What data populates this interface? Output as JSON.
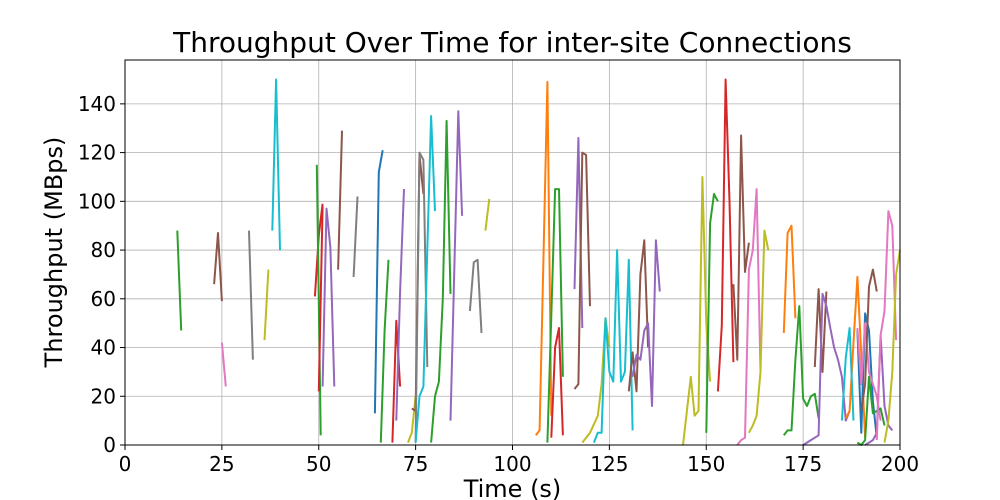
{
  "chart_data": {
    "type": "line",
    "title": "Throughput Over Time for inter-site Connections",
    "xlabel": "Time (s)",
    "ylabel": "Throughput (MBps)",
    "xlim": [
      0,
      200
    ],
    "ylim": [
      0,
      158
    ],
    "xticks": [
      0,
      25,
      50,
      75,
      100,
      125,
      150,
      175,
      200
    ],
    "yticks": [
      0,
      20,
      40,
      60,
      80,
      100,
      120,
      140
    ],
    "grid": true,
    "legend": "none",
    "palette": [
      "#1f77b4",
      "#ff7f0e",
      "#2ca02c",
      "#d62728",
      "#9467bd",
      "#8c564b",
      "#e377c2",
      "#7f7f7f",
      "#bcbd22",
      "#17becf"
    ],
    "series": [
      {
        "color": "#2ca02c",
        "x": [
          13.5,
          14.5
        ],
        "y": [
          88,
          47
        ]
      },
      {
        "color": "#8c564b",
        "x": [
          23,
          24,
          25
        ],
        "y": [
          66,
          87,
          59
        ]
      },
      {
        "color": "#e377c2",
        "x": [
          25,
          26
        ],
        "y": [
          42,
          24
        ]
      },
      {
        "color": "#7f7f7f",
        "x": [
          32,
          33
        ],
        "y": [
          88,
          35
        ]
      },
      {
        "color": "#bcbd22",
        "x": [
          36,
          37
        ],
        "y": [
          43,
          72
        ]
      },
      {
        "color": "#17becf",
        "x": [
          38,
          39,
          40
        ],
        "y": [
          88,
          150,
          80
        ]
      },
      {
        "color": "#d62728",
        "x": [
          49,
          50,
          51
        ],
        "y": [
          61,
          86,
          99
        ]
      },
      {
        "color": "#2ca02c",
        "x": [
          49.5,
          50.5
        ],
        "y": [
          115,
          4
        ]
      },
      {
        "color": "#d62728",
        "x": [
          50,
          51
        ],
        "y": [
          22,
          98
        ]
      },
      {
        "color": "#9467bd",
        "x": [
          51,
          52,
          53,
          54
        ],
        "y": [
          24,
          97,
          81,
          24
        ]
      },
      {
        "color": "#8c564b",
        "x": [
          55,
          56
        ],
        "y": [
          72,
          129
        ]
      },
      {
        "color": "#7f7f7f",
        "x": [
          59,
          60
        ],
        "y": [
          69,
          102
        ]
      },
      {
        "color": "#1f77b4",
        "x": [
          64.5,
          65.5,
          66.5
        ],
        "y": [
          13,
          112,
          121
        ]
      },
      {
        "color": "#2ca02c",
        "x": [
          66,
          67,
          68
        ],
        "y": [
          1,
          47,
          76
        ]
      },
      {
        "color": "#d62728",
        "x": [
          69,
          70,
          71
        ],
        "y": [
          1,
          51,
          24
        ]
      },
      {
        "color": "#9467bd",
        "x": [
          70,
          71,
          72
        ],
        "y": [
          10,
          63,
          105
        ]
      },
      {
        "color": "#bcbd22",
        "x": [
          73,
          74,
          75
        ],
        "y": [
          1,
          5,
          20
        ]
      },
      {
        "color": "#8c564b",
        "x": [
          74,
          75,
          76,
          77
        ],
        "y": [
          15,
          14,
          119,
          103
        ]
      },
      {
        "color": "#7f7f7f",
        "x": [
          75,
          76,
          77,
          78
        ],
        "y": [
          1,
          120,
          117,
          32
        ]
      },
      {
        "color": "#17becf",
        "x": [
          75,
          76,
          77,
          78,
          79,
          80
        ],
        "y": [
          1,
          20,
          24,
          80,
          135,
          96
        ]
      },
      {
        "color": "#2ca02c",
        "x": [
          79,
          80,
          81,
          82,
          83,
          84
        ],
        "y": [
          1,
          20,
          26,
          60,
          133,
          62
        ]
      },
      {
        "color": "#9467bd",
        "x": [
          84,
          86,
          87
        ],
        "y": [
          10,
          137,
          94
        ]
      },
      {
        "color": "#7f7f7f",
        "x": [
          89,
          90,
          91,
          92
        ],
        "y": [
          55,
          75,
          76,
          46
        ]
      },
      {
        "color": "#bcbd22",
        "x": [
          93,
          94
        ],
        "y": [
          88,
          101
        ]
      },
      {
        "color": "#ff7f0e",
        "x": [
          106,
          107,
          109,
          110
        ],
        "y": [
          4,
          6,
          149,
          12
        ]
      },
      {
        "color": "#2ca02c",
        "x": [
          109,
          110,
          111,
          112,
          113
        ],
        "y": [
          1,
          53,
          105,
          105,
          28
        ]
      },
      {
        "color": "#d62728",
        "x": [
          110,
          111,
          112,
          113
        ],
        "y": [
          3,
          40,
          48,
          4
        ]
      },
      {
        "color": "#9467bd",
        "x": [
          116,
          117,
          118
        ],
        "y": [
          64,
          126,
          48
        ]
      },
      {
        "color": "#8c564b",
        "x": [
          116,
          117,
          118,
          119,
          120
        ],
        "y": [
          23,
          25,
          120,
          119,
          57
        ]
      },
      {
        "color": "#bcbd22",
        "x": [
          118,
          120,
          122,
          123,
          124,
          125
        ],
        "y": [
          1,
          5,
          12,
          25,
          52,
          40
        ]
      },
      {
        "color": "#17becf",
        "x": [
          121,
          122,
          123,
          124,
          125,
          126,
          127,
          128,
          129,
          130,
          131
        ],
        "y": [
          1,
          5,
          5,
          52,
          30,
          26,
          80,
          26,
          30,
          76,
          6
        ]
      },
      {
        "color": "#8c564b",
        "x": [
          130,
          131,
          132,
          133,
          134,
          135
        ],
        "y": [
          22,
          38,
          22,
          70,
          84,
          40
        ]
      },
      {
        "color": "#9467bd",
        "x": [
          131,
          132,
          133,
          134,
          135,
          136,
          137,
          138
        ],
        "y": [
          28,
          37,
          35,
          47,
          50,
          16,
          84,
          63
        ]
      },
      {
        "color": "#bcbd22",
        "x": [
          144,
          146,
          147,
          148,
          149,
          150,
          151
        ],
        "y": [
          0,
          28,
          12,
          14,
          110,
          50,
          26
        ]
      },
      {
        "color": "#2ca02c",
        "x": [
          150,
          151,
          152,
          153
        ],
        "y": [
          5,
          91,
          103,
          100
        ]
      },
      {
        "color": "#d62728",
        "x": [
          153,
          154,
          155,
          156,
          157
        ],
        "y": [
          22,
          49,
          150,
          100,
          34
        ]
      },
      {
        "color": "#8c564b",
        "x": [
          157,
          158,
          159,
          160,
          161
        ],
        "y": [
          66,
          35,
          127,
          71,
          83
        ]
      },
      {
        "color": "#e377c2",
        "x": [
          158,
          159,
          160,
          161,
          162,
          163,
          164
        ],
        "y": [
          0,
          2,
          3,
          72,
          80,
          105,
          30
        ]
      },
      {
        "color": "#bcbd22",
        "x": [
          161,
          162,
          163,
          164,
          165,
          166
        ],
        "y": [
          5,
          8,
          12,
          30,
          88,
          80
        ]
      },
      {
        "color": "#ff7f0e",
        "x": [
          170,
          171,
          172,
          173
        ],
        "y": [
          46,
          87,
          90,
          52
        ]
      },
      {
        "color": "#2ca02c",
        "x": [
          170,
          171,
          172,
          173,
          174,
          175,
          176,
          177,
          178,
          179
        ],
        "y": [
          4,
          6,
          6,
          35,
          57,
          19,
          16,
          20,
          21,
          11
        ]
      },
      {
        "color": "#8c564b",
        "x": [
          178,
          179,
          180,
          181
        ],
        "y": [
          32,
          64,
          30,
          63
        ]
      },
      {
        "color": "#9467bd",
        "x": [
          175,
          176,
          177,
          178,
          179,
          180,
          181,
          182,
          183,
          184,
          185,
          186,
          187
        ],
        "y": [
          0,
          1,
          2,
          3,
          4,
          62,
          57,
          48,
          40,
          35,
          28,
          10,
          14
        ]
      },
      {
        "color": "#ff7f0e",
        "x": [
          186,
          187,
          188,
          189,
          190,
          191
        ],
        "y": [
          11,
          14,
          42,
          69,
          37,
          3
        ]
      },
      {
        "color": "#17becf",
        "x": [
          185,
          186,
          187,
          188
        ],
        "y": [
          10,
          36,
          48,
          10
        ]
      },
      {
        "color": "#1f77b4",
        "x": [
          189,
          190,
          191,
          192,
          193,
          194
        ],
        "y": [
          47,
          5,
          54,
          47,
          18,
          3
        ]
      },
      {
        "color": "#e377c2",
        "x": [
          189,
          190,
          191,
          192,
          193,
          194,
          195
        ],
        "y": [
          48,
          25,
          50,
          30,
          25,
          20,
          10
        ]
      },
      {
        "color": "#2ca02c",
        "x": [
          189,
          190,
          191,
          192,
          193,
          194,
          195,
          196
        ],
        "y": [
          1,
          0,
          2,
          28,
          13,
          14,
          15,
          8
        ]
      },
      {
        "color": "#8c564b",
        "x": [
          190,
          191,
          192,
          193,
          194
        ],
        "y": [
          14,
          25,
          65,
          72,
          63
        ]
      },
      {
        "color": "#9467bd",
        "x": [
          191,
          192,
          193,
          194,
          195,
          196,
          197,
          198
        ],
        "y": [
          0,
          1,
          2,
          5,
          45,
          16,
          8,
          6
        ]
      },
      {
        "color": "#e377c2",
        "x": [
          194,
          195,
          196,
          197,
          198,
          199
        ],
        "y": [
          2,
          45,
          55,
          96,
          90,
          43
        ]
      },
      {
        "color": "#bcbd22",
        "x": [
          196,
          197,
          198,
          199,
          200
        ],
        "y": [
          1,
          10,
          30,
          70,
          80
        ]
      }
    ]
  }
}
